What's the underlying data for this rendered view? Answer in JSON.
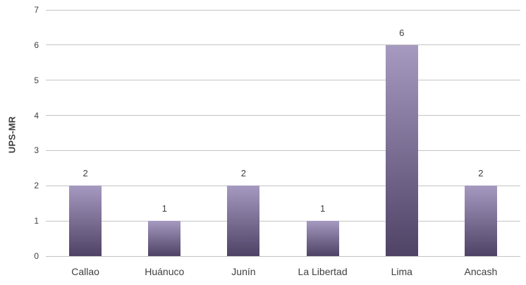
{
  "chart_data": {
    "type": "bar",
    "categories": [
      "Callao",
      "Huánuco",
      "Junín",
      "La Libertad",
      "Lima",
      "Ancash"
    ],
    "values": [
      2,
      1,
      2,
      1,
      6,
      2
    ],
    "value_labels": [
      "2",
      "1",
      "2",
      "1",
      "6",
      "2"
    ],
    "title": "",
    "xlabel": "",
    "ylabel": "UPS-MR",
    "ylim": [
      0,
      7
    ],
    "ytick_step": 1,
    "ytick_labels": [
      "0",
      "1",
      "2",
      "3",
      "4",
      "5",
      "6",
      "7"
    ],
    "grid": true,
    "legend": "none",
    "colors": {
      "bar_gradient_top": "#a69ac1",
      "bar_gradient_bottom": "#4e4265",
      "gridline": "#c4c4c4",
      "text": "#3f3f3f",
      "background": "#ffffff"
    }
  }
}
